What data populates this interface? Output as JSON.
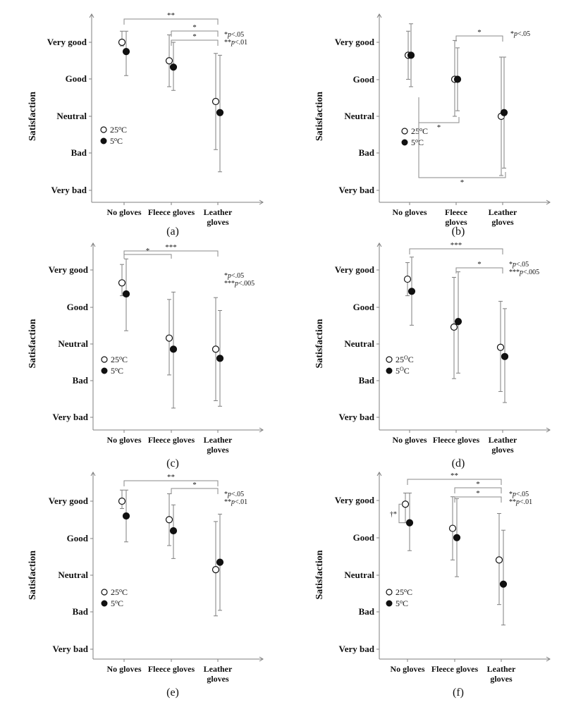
{
  "figure": {
    "y_levels": [
      "Very good",
      "Good",
      "Neutral",
      "Bad",
      "Very bad"
    ],
    "y_title": "Satisfaction",
    "categories": [
      "No gloves",
      "Fleece gloves",
      "Leather gloves"
    ],
    "legend": {
      "open": "25oC",
      "filled": "5oC"
    },
    "colors": {
      "axis": "#7f7f7f",
      "bracket": "#8a8a8a",
      "marker": "#111111",
      "text": "#111111"
    }
  },
  "chart_data": [
    {
      "type": "scatter",
      "panel_label": "(a)",
      "ylim": [
        1,
        5
      ],
      "categories": [
        "No gloves",
        "Fleece gloves",
        "Leather gloves"
      ],
      "category_lines": [
        [
          "No gloves"
        ],
        [
          "Fleece gloves"
        ],
        [
          "Leather",
          "gloves"
        ]
      ],
      "series": [
        {
          "name": "25oC",
          "values": [
            5.0,
            4.5,
            3.4
          ],
          "errors": [
            [
              4.9,
              5.3
            ],
            [
              3.8,
              5.2
            ],
            [
              2.1,
              4.7
            ]
          ]
        },
        {
          "name": "5oC",
          "values": [
            4.75,
            4.33,
            3.1
          ],
          "errors": [
            [
              4.1,
              5.3
            ],
            [
              3.7,
              5.0
            ],
            [
              1.5,
              4.65
            ]
          ]
        }
      ],
      "legend_words": [
        "25oC",
        "5oC"
      ],
      "significance": [
        {
          "from": "No gloves",
          "to": "Leather gloves",
          "label": "**"
        },
        {
          "from": "Fleece gloves",
          "to": "Leather gloves",
          "label": "*"
        },
        {
          "from": "Fleece gloves",
          "to": "Leather gloves",
          "label": "*"
        }
      ],
      "notes": [
        "*p<.05",
        "**p<.01"
      ]
    },
    {
      "type": "scatter",
      "panel_label": "(b)",
      "ylim": [
        1,
        5
      ],
      "categories": [
        "No gloves",
        "Fleece gloves",
        "Leather gloves"
      ],
      "category_lines": [
        [
          "No gloves"
        ],
        [
          "Fleece",
          "gloves"
        ],
        [
          "Leather",
          "gloves"
        ]
      ],
      "series": [
        {
          "name": "25oC",
          "values": [
            4.65,
            4.0,
            3.0
          ],
          "errors": [
            [
              4.0,
              5.3
            ],
            [
              3.0,
              5.05
            ],
            [
              1.4,
              4.6
            ]
          ]
        },
        {
          "name": "5oC",
          "values": [
            4.65,
            4.0,
            3.1
          ],
          "errors": [
            [
              3.8,
              5.5
            ],
            [
              3.15,
              4.85
            ],
            [
              1.6,
              4.6
            ]
          ]
        }
      ],
      "legend_words": [
        "25oC",
        "5oC"
      ],
      "significance": [
        {
          "from": "Fleece gloves",
          "to": "Leather gloves",
          "label": "*"
        },
        {
          "from": "No gloves",
          "to": "Fleece gloves",
          "label": "*"
        },
        {
          "from": "No gloves",
          "to": "Leather gloves",
          "label": "*"
        }
      ],
      "notes": [
        "*p<.05"
      ]
    },
    {
      "type": "scatter",
      "panel_label": "(c)",
      "ylim": [
        1,
        5
      ],
      "categories": [
        "No gloves",
        "Fleece gloves",
        "Leather gloves"
      ],
      "category_lines": [
        [
          "No gloves"
        ],
        [
          "Fleece gloves"
        ],
        [
          "Leather",
          "gloves"
        ]
      ],
      "series": [
        {
          "name": "25oC",
          "values": [
            4.65,
            3.15,
            2.85
          ],
          "errors": [
            [
              4.3,
              5.15
            ],
            [
              2.15,
              4.2
            ],
            [
              1.45,
              4.25
            ]
          ]
        },
        {
          "name": "5oC",
          "values": [
            4.35,
            2.85,
            2.6
          ],
          "errors": [
            [
              3.35,
              5.3
            ],
            [
              1.25,
              4.4
            ],
            [
              1.3,
              3.9
            ]
          ]
        }
      ],
      "legend_words": [
        "25oC",
        "5oC"
      ],
      "significance": [
        {
          "from": "No gloves",
          "to": "Leather gloves",
          "label": "***"
        },
        {
          "from": "No gloves",
          "to": "Fleece gloves",
          "label": "*"
        }
      ],
      "notes": [
        "*p<.05",
        "***p<.005"
      ]
    },
    {
      "type": "scatter",
      "panel_label": "(d)",
      "ylim": [
        1,
        5
      ],
      "categories": [
        "No gloves",
        "Fleece gloves",
        "Leather gloves"
      ],
      "category_lines": [
        [
          "No gloves"
        ],
        [
          "Fleece gloves"
        ],
        [
          "Leather",
          "gloves"
        ]
      ],
      "series": [
        {
          "name": "25oC",
          "values": [
            4.75,
            3.45,
            2.9
          ],
          "errors": [
            [
              4.3,
              5.2
            ],
            [
              2.05,
              4.8
            ],
            [
              1.7,
              4.15
            ]
          ]
        },
        {
          "name": "5oC",
          "values": [
            4.42,
            3.6,
            2.65
          ],
          "errors": [
            [
              3.5,
              5.35
            ],
            [
              2.2,
              4.95
            ],
            [
              1.4,
              3.95
            ]
          ]
        }
      ],
      "legend_words": [
        "25OC",
        "5OC"
      ],
      "significance": [
        {
          "from": "No gloves",
          "to": "Leather gloves",
          "label": "***"
        },
        {
          "from": "Fleece gloves",
          "to": "Leather gloves",
          "label": "*"
        }
      ],
      "notes": [
        "*p<.05",
        "***p<.005"
      ]
    },
    {
      "type": "scatter",
      "panel_label": "(e)",
      "ylim": [
        1,
        5
      ],
      "categories": [
        "No gloves",
        "Fleece gloves",
        "Leather gloves"
      ],
      "category_lines": [
        [
          "No gloves"
        ],
        [
          "Fleece gloves"
        ],
        [
          "Leather",
          "gloves"
        ]
      ],
      "series": [
        {
          "name": "25oC",
          "values": [
            5.0,
            4.5,
            3.15
          ],
          "errors": [
            [
              4.8,
              5.3
            ],
            [
              3.8,
              5.2
            ],
            [
              1.9,
              4.45
            ]
          ]
        },
        {
          "name": "5oC",
          "values": [
            4.6,
            4.2,
            3.35
          ],
          "errors": [
            [
              3.9,
              5.3
            ],
            [
              3.45,
              4.9
            ],
            [
              2.05,
              4.65
            ]
          ]
        }
      ],
      "legend_words": [
        "25oC",
        "5oC"
      ],
      "significance": [
        {
          "from": "No gloves",
          "to": "Leather gloves",
          "label": "**"
        },
        {
          "from": "Fleece gloves",
          "to": "Leather gloves",
          "label": "*"
        }
      ],
      "notes": [
        "*p<.05",
        "**p<.01"
      ]
    },
    {
      "type": "scatter",
      "panel_label": "(f)",
      "ylim": [
        1,
        5
      ],
      "categories": [
        "No gloves",
        "Fleece gloves",
        "Leather gloves"
      ],
      "category_lines": [
        [
          "No gloves"
        ],
        [
          "Fleece gloves"
        ],
        [
          "Leather",
          "gloves"
        ]
      ],
      "series": [
        {
          "name": "25oC",
          "values": [
            4.9,
            4.25,
            3.4
          ],
          "errors": [
            [
              4.4,
              5.2
            ],
            [
              3.4,
              5.1
            ],
            [
              2.2,
              4.65
            ]
          ]
        },
        {
          "name": "5oC",
          "values": [
            4.4,
            4.0,
            2.75
          ],
          "errors": [
            [
              3.65,
              5.2
            ],
            [
              2.95,
              5.05
            ],
            [
              1.65,
              4.2
            ]
          ]
        }
      ],
      "legend_words": [
        "25oC",
        "5oC"
      ],
      "significance": [
        {
          "from": "No gloves",
          "to": "Leather gloves",
          "label": "**"
        },
        {
          "from": "Fleece gloves",
          "to": "Leather gloves",
          "label": "*"
        },
        {
          "from": "Fleece gloves",
          "to": "Leather gloves",
          "label": "*"
        }
      ],
      "within_note": "†*",
      "notes": [
        "*p<.05",
        "**p<.01"
      ]
    }
  ]
}
